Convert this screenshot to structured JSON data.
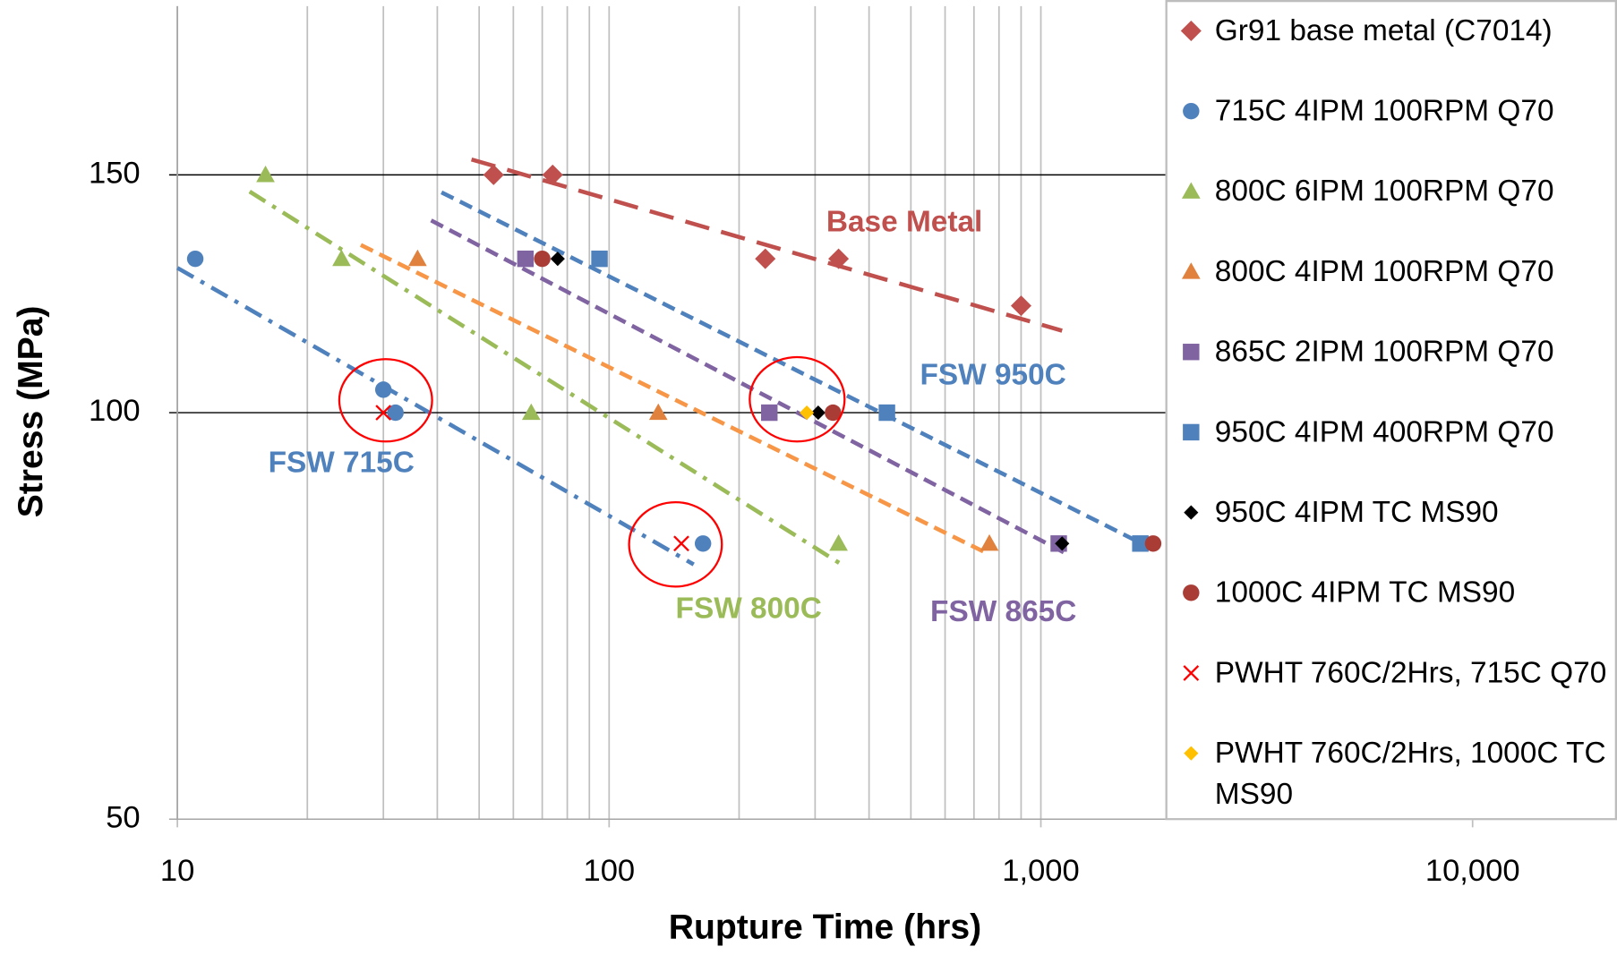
{
  "chart_data": {
    "type": "scatter",
    "x_label": "Rupture Time (hrs)",
    "y_label": "Stress (MPa)",
    "x_log": true,
    "y_log": true,
    "xlim": [
      10,
      20000
    ],
    "ylim": [
      50,
      200
    ],
    "xticks": [
      10,
      100,
      {
        "value": 1000,
        "label": "1,000"
      },
      {
        "value": 10000,
        "label": "10,000"
      }
    ],
    "x_minor_grid": [
      20,
      30,
      40,
      50,
      60,
      70,
      80,
      90,
      200,
      300,
      400,
      500,
      600,
      700,
      800,
      900,
      2000,
      3000,
      4000,
      5000,
      6000,
      7000,
      8000,
      9000
    ],
    "yticks": [
      50,
      100,
      150
    ],
    "series": [
      {
        "name": "Gr91 base metal (C7014)",
        "color": "#c0504d",
        "marker": "diamond",
        "x": [
          54,
          74,
          230,
          340,
          900
        ],
        "values": [
          150,
          150,
          130,
          130,
          120
        ]
      },
      {
        "name": "715C 4IPM 100RPM Q70",
        "color": "#4f81bd",
        "marker": "circle",
        "x": [
          11,
          30,
          32,
          165
        ],
        "values": [
          130,
          104,
          100,
          80
        ]
      },
      {
        "name": "800C 6IPM 100RPM Q70",
        "color": "#9bbb59",
        "marker": "triangle",
        "x": [
          16,
          24,
          66,
          340
        ],
        "values": [
          150,
          130,
          100,
          80
        ]
      },
      {
        "name": "800C 4IPM 100RPM Q70",
        "color": "#e0823d",
        "marker": "triangle",
        "x": [
          36,
          130,
          760
        ],
        "values": [
          130,
          100,
          80
        ]
      },
      {
        "name": "865C 2IPM 100RPM Q70",
        "color": "#8064a2",
        "marker": "square",
        "x": [
          64,
          235,
          1100
        ],
        "values": [
          130,
          100,
          80
        ]
      },
      {
        "name": "950C 4IPM 400RPM Q70",
        "color": "#4f81bd",
        "marker": "square",
        "x": [
          95,
          440,
          1700
        ],
        "values": [
          130,
          100,
          80
        ]
      },
      {
        "name": "950C 4IPM TC MS90",
        "color": "#000000",
        "marker": "smalldiamond",
        "x": [
          76,
          305,
          1120
        ],
        "values": [
          130,
          100,
          80
        ]
      },
      {
        "name": "1000C 4IPM TC MS90",
        "color": "#a93c35",
        "marker": "circle",
        "x": [
          70,
          330,
          1820
        ],
        "values": [
          130,
          100,
          80
        ]
      },
      {
        "name": "PWHT 760C/2Hrs, 715C Q70",
        "color": "#ff0000",
        "marker": "x",
        "x": [
          30,
          147
        ],
        "values": [
          100,
          80
        ]
      },
      {
        "name": "PWHT 760C/2Hrs, 1000C TC MS90",
        "color": "#ffc000",
        "marker": "smalldiamond",
        "x": [
          287
        ],
        "values": [
          100
        ]
      }
    ],
    "trendlines": [
      {
        "color": "#c0504d",
        "dash": "longdash",
        "x": [
          48,
          1120
        ],
        "values": [
          154,
          115
        ]
      },
      {
        "color": "#4f81bd",
        "dash": "dashdot",
        "x": [
          10,
          157
        ],
        "values": [
          128,
          77.2
        ]
      },
      {
        "color": "#9bbb59",
        "dash": "dashdot",
        "x": [
          14.7,
          350
        ],
        "values": [
          145.8,
          77
        ]
      },
      {
        "color": "#f79646",
        "dash": "dash",
        "x": [
          26.6,
          755
        ],
        "values": [
          133.1,
          78.6
        ]
      },
      {
        "color": "#8064a2",
        "dash": "dash",
        "x": [
          38.7,
          1148
        ],
        "values": [
          138.8,
          78.6
        ]
      },
      {
        "color": "#4f81bd",
        "dash": "dash",
        "x": [
          40.9,
          1687
        ],
        "values": [
          145.6,
          80.2
        ]
      }
    ],
    "annotations": [
      {
        "text": "Base Metal",
        "color": "#c0504d"
      },
      {
        "text": "FSW 950C",
        "color": "#4f81bd"
      },
      {
        "text": "FSW 715C",
        "color": "#4f81bd"
      },
      {
        "text": "FSW 800C",
        "color": "#9bbb59"
      },
      {
        "text": "FSW 865C",
        "color": "#8064a2"
      }
    ]
  }
}
